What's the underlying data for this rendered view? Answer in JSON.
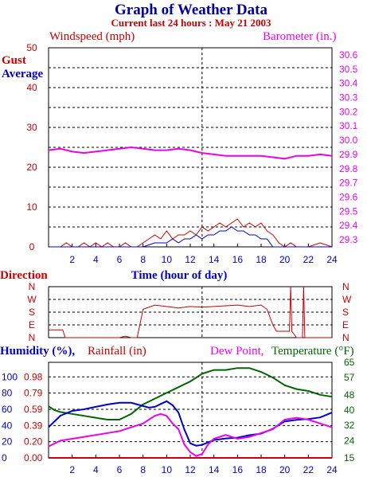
{
  "header": {
    "title": "Graph of Weather Data",
    "subtitle": "Current last 24 hours : May 21 2003"
  },
  "colors": {
    "title": "#000099",
    "red": "#cc0000",
    "blue": "#0000cc",
    "magenta": "#ee00ee",
    "green": "#006600",
    "black": "#000000"
  },
  "chart_data": [
    {
      "type": "line",
      "name": "wind-barometer",
      "labels": {
        "windspeed": "Windspeed (mph)",
        "barometer": "Barometer (in.)",
        "gust": "Gust",
        "average": "Average",
        "xlabel": "Time (hour of day)"
      },
      "x_ticks": [
        "2",
        "4",
        "6",
        "8",
        "10",
        "12",
        "14",
        "16",
        "18",
        "20",
        "22",
        "24"
      ],
      "xlim": [
        0,
        24
      ],
      "left_axis": {
        "ticks": [
          "0",
          "10",
          "20",
          "30",
          "40",
          "50"
        ],
        "ylim": [
          0,
          50
        ]
      },
      "right_axis": {
        "ticks": [
          "29.3",
          "29.4",
          "29.5",
          "29.6",
          "29.7",
          "29.8",
          "29.9",
          "30.0",
          "30.1",
          "30.2",
          "30.3",
          "30.4",
          "30.5",
          "30.6"
        ],
        "ylim": [
          29.25,
          30.65
        ]
      },
      "grid": true,
      "series": [
        {
          "name": "Gust",
          "color": "#cc0000",
          "x": [
            0,
            1,
            1.5,
            2,
            2.5,
            3,
            3.5,
            4,
            4.5,
            5,
            5.5,
            6,
            6.5,
            7,
            7.5,
            8,
            8.5,
            9,
            9.5,
            10,
            10.5,
            11,
            11.5,
            12,
            12.5,
            13,
            13.5,
            14,
            14.5,
            15,
            15.5,
            16,
            16.5,
            17,
            17.5,
            18,
            18.5,
            19,
            19.5,
            20,
            20.5,
            21,
            22,
            23,
            24
          ],
          "y": [
            0,
            0,
            1,
            0,
            0,
            1,
            0,
            1,
            0,
            1,
            0,
            0,
            1,
            0,
            0,
            1,
            2,
            3,
            2,
            4,
            2,
            3,
            3,
            4,
            3,
            5,
            4,
            5,
            6,
            5,
            6,
            7,
            5,
            6,
            5,
            6,
            4,
            3,
            1,
            0,
            1,
            0,
            0,
            1,
            0
          ]
        },
        {
          "name": "Average",
          "color": "#0000cc",
          "x": [
            0,
            7,
            8,
            9,
            10,
            10.5,
            11,
            11.5,
            12,
            12.5,
            13,
            13.5,
            14,
            14.5,
            15,
            15.5,
            16,
            16.5,
            17,
            17.5,
            18,
            18.5,
            19,
            20,
            24
          ],
          "y": [
            0,
            0,
            0,
            1,
            1,
            2,
            1,
            2,
            2,
            3,
            2,
            3,
            3,
            4,
            4,
            5,
            4,
            4,
            3,
            3,
            2,
            2,
            0,
            0,
            0
          ]
        },
        {
          "name": "Barometer",
          "color": "#ee00ee",
          "axis": "right",
          "x": [
            0,
            1,
            2,
            3,
            4,
            5,
            6,
            7,
            8,
            9,
            10,
            11,
            12,
            13,
            14,
            15,
            16,
            17,
            18,
            19,
            20,
            21,
            22,
            23,
            24
          ],
          "y": [
            29.93,
            29.94,
            29.92,
            29.91,
            29.92,
            29.93,
            29.94,
            29.95,
            29.94,
            29.93,
            29.93,
            29.94,
            29.93,
            29.91,
            29.9,
            29.89,
            29.89,
            29.89,
            29.89,
            29.88,
            29.87,
            29.89,
            29.89,
            29.9,
            29.89
          ]
        }
      ]
    },
    {
      "type": "line",
      "name": "direction",
      "labels": {
        "direction": "Direction"
      },
      "y_ticks": [
        "N",
        "W",
        "S",
        "E",
        "N"
      ],
      "xlim": [
        0,
        24
      ],
      "series": [
        {
          "name": "Direction",
          "color": "#cc0000",
          "x": [
            0,
            1.2,
            1.4,
            2,
            4,
            6,
            6.5,
            7,
            7.5,
            8,
            9,
            10,
            11,
            12,
            13,
            14,
            15,
            16,
            17,
            18,
            18.5,
            19,
            19.3,
            19.6,
            20,
            20.4,
            20.5,
            20.6,
            21,
            21.5,
            21.6,
            21.7,
            22,
            23,
            24
          ],
          "y": [
            55,
            55,
            0,
            0,
            0,
            0,
            10,
            0,
            0,
            200,
            230,
            220,
            210,
            220,
            215,
            220,
            225,
            230,
            220,
            230,
            200,
            90,
            45,
            45,
            45,
            45,
            360,
            45,
            0,
            0,
            360,
            0,
            0,
            0,
            0
          ]
        }
      ]
    },
    {
      "type": "line",
      "name": "humidity-temperature",
      "labels": {
        "humidity": "Humidity (%),",
        "rainfall": "Rainfall (in)",
        "dewpoint": "Dew Point,",
        "temperature": "Temperature (°F)"
      },
      "x_ticks": [
        "2",
        "4",
        "6",
        "8",
        "10",
        "12",
        "14",
        "16",
        "18",
        "20",
        "22",
        "24"
      ],
      "xlim": [
        0,
        24
      ],
      "humidity_axis": {
        "ticks": [
          "0",
          "20",
          "40",
          "60",
          "80",
          "100"
        ],
        "ylim": [
          0,
          118
        ]
      },
      "rainfall_axis": {
        "ticks": [
          "0.00",
          "0.20",
          "0.39",
          "0.59",
          "0.79",
          "0.98"
        ]
      },
      "temperature_axis": {
        "ticks": [
          "15",
          "24",
          "32",
          "40",
          "48",
          "57",
          "65"
        ],
        "ylim": [
          15,
          65
        ]
      },
      "grid": true,
      "series": [
        {
          "name": "Temperature",
          "color": "#006600",
          "axis": "right",
          "x": [
            0,
            0.5,
            1,
            2,
            3,
            4,
            5,
            6,
            7,
            8,
            9,
            10,
            11,
            12,
            13,
            14,
            15,
            16,
            17,
            18,
            19,
            20,
            21,
            22,
            23,
            24
          ],
          "y": [
            42,
            40,
            39,
            38,
            37,
            36,
            35,
            35,
            38,
            43,
            46,
            49,
            52,
            55,
            59,
            61,
            61,
            62,
            62,
            60,
            57,
            53,
            51,
            50,
            48,
            47
          ]
        },
        {
          "name": "Humidity",
          "color": "#0000cc",
          "x": [
            0,
            1,
            2,
            3,
            4,
            5,
            6,
            7,
            8,
            8.5,
            9,
            10,
            10.5,
            11,
            11.5,
            12,
            12.5,
            13,
            14,
            15,
            16,
            17,
            18,
            19,
            20,
            21,
            22,
            23,
            24
          ],
          "y": [
            38,
            52,
            58,
            60,
            63,
            66,
            68,
            68,
            64,
            62,
            63,
            70,
            65,
            56,
            35,
            18,
            15,
            16,
            22,
            24,
            25,
            28,
            30,
            36,
            45,
            47,
            48,
            50,
            56
          ]
        },
        {
          "name": "Dew Point",
          "color": "#ee00ee",
          "axis": "right",
          "x": [
            0,
            1,
            2,
            3,
            4,
            5,
            6,
            7,
            8,
            9,
            9.5,
            10,
            10.5,
            11,
            11.5,
            12,
            12.5,
            13,
            13.5,
            14,
            15,
            16,
            17,
            18,
            19,
            20,
            21,
            22,
            23,
            24
          ],
          "y": [
            21,
            24,
            25,
            26,
            27,
            28,
            29,
            31,
            33,
            37,
            38,
            37,
            33,
            30,
            22,
            18,
            16,
            17,
            22,
            25,
            27,
            25,
            26,
            28,
            30,
            35,
            36,
            35,
            33,
            31
          ]
        },
        {
          "name": "Rainfall",
          "color": "#cc0000",
          "x": [
            0,
            24
          ],
          "y": [
            0,
            0
          ]
        }
      ]
    }
  ]
}
